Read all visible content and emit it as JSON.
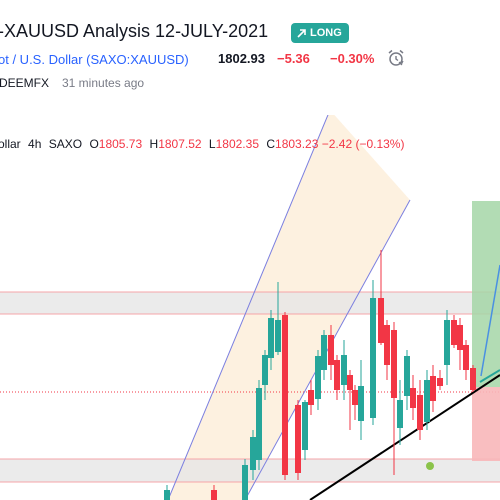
{
  "header": {
    "title": "-XAUUSD Analysis 12-JULY-2021",
    "badge_label": "LONG",
    "symbol_name": "ot / U.S. Dollar",
    "symbol_code": "(SAXO:XAUUSD)",
    "price": "1802.93",
    "change": "−5.36",
    "change_pct": "−0.30%",
    "author": "DEEMFX",
    "time_ago": "31 minutes ago"
  },
  "legend": {
    "symbol": "ollar",
    "interval": "4h",
    "exchange": "SAXO",
    "o_label": "O",
    "o_value": "1805.73",
    "h_label": "H",
    "h_value": "1807.52",
    "l_label": "L",
    "l_value": "1802.35",
    "c_label": "C",
    "c_value": "1803.23",
    "change": "−2.42 (−0.13%)"
  },
  "colors": {
    "up": "#26a69a",
    "down": "#f23645",
    "accent": "#2962ff",
    "channel_fill": "#fdf0dd",
    "zone_fill": "#e6e6e6",
    "target_fill": "#a5d6a7",
    "stop_fill": "#f8b7b9"
  },
  "icons": {
    "badge_icon": "arrow-up-right-icon",
    "alert_icon": "alarm-clock-icon"
  }
}
